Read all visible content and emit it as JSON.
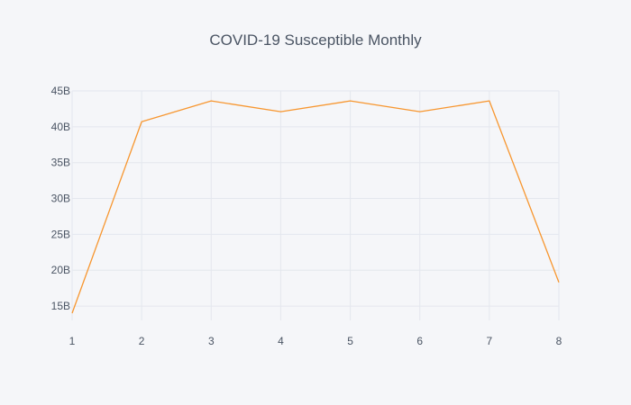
{
  "chart_data": {
    "type": "line",
    "title": "COVID-19 Susceptible Monthly",
    "xlabel": "",
    "ylabel": "",
    "xlim": [
      1,
      8
    ],
    "ylim": [
      13000000000,
      45000000000
    ],
    "x_ticks": [
      1,
      2,
      3,
      4,
      5,
      6,
      7,
      8
    ],
    "x_tick_labels": [
      "1",
      "2",
      "3",
      "4",
      "5",
      "6",
      "7",
      "8"
    ],
    "y_ticks": [
      15000000000,
      20000000000,
      25000000000,
      30000000000,
      35000000000,
      40000000000,
      45000000000
    ],
    "y_tick_labels": [
      "15B",
      "20B",
      "25B",
      "30B",
      "35B",
      "40B",
      "45B"
    ],
    "grid": true,
    "legend": "none",
    "series": [
      {
        "color": "#f7962f",
        "x": [
          1,
          2,
          3,
          4,
          5,
          6,
          7,
          8
        ],
        "y": [
          14000000000,
          40700000000,
          43600000000,
          42100000000,
          43600000000,
          42100000000,
          43600000000,
          18300000000
        ]
      }
    ]
  },
  "colors": {
    "background": "#f5f6f9",
    "grid": "#e4e7ee",
    "text": "#4a5463",
    "series": "#f7962f"
  }
}
